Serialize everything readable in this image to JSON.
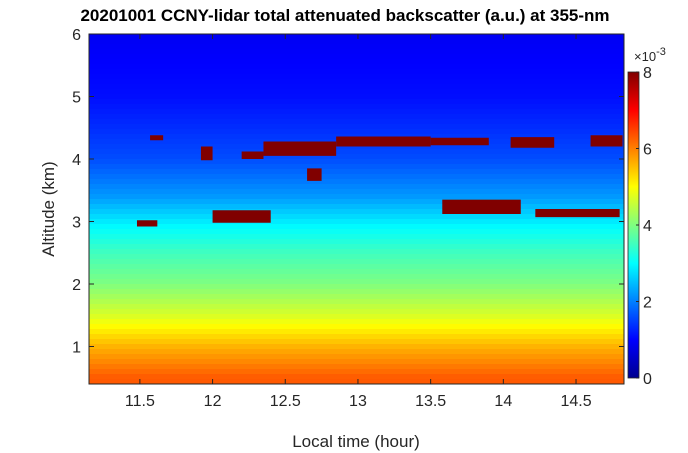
{
  "chart_data": {
    "type": "heatmap",
    "title": "20201001 CCNY-lidar total attenuated backscatter (a.u.) at 355-nm",
    "xlabel": "Local time (hour)",
    "ylabel": "Altitude (km)",
    "xlim": [
      11.15,
      14.83
    ],
    "ylim": [
      0.4,
      6.0
    ],
    "xticks": [
      11.5,
      12,
      12.5,
      13,
      13.5,
      14,
      14.5
    ],
    "xtick_labels": [
      "11.5",
      "12",
      "12.5",
      "13",
      "13.5",
      "14",
      "14.5"
    ],
    "yticks": [
      1,
      2,
      3,
      4,
      5,
      6
    ],
    "ytick_labels": [
      "1",
      "2",
      "3",
      "4",
      "5",
      "6"
    ],
    "colorbar": {
      "colormap": "jet",
      "range": [
        0,
        8
      ],
      "ticks": [
        0,
        2,
        4,
        6,
        8
      ],
      "tick_labels": [
        "0",
        "2",
        "4",
        "6",
        "8"
      ],
      "exponent_label": "×10",
      "exponent_power": "-3"
    },
    "background_profile": [
      {
        "altitude_km": 0.5,
        "value": 6.3
      },
      {
        "altitude_km": 1.0,
        "value": 5.6
      },
      {
        "altitude_km": 1.5,
        "value": 4.7
      },
      {
        "altitude_km": 2.0,
        "value": 4.0
      },
      {
        "altitude_km": 2.5,
        "value": 3.5
      },
      {
        "altitude_km": 2.9,
        "value": 3.0
      },
      {
        "altitude_km": 3.4,
        "value": 2.2
      },
      {
        "altitude_km": 4.0,
        "value": 1.6
      },
      {
        "altitude_km": 5.0,
        "value": 1.1
      },
      {
        "altitude_km": 6.0,
        "value": 0.9
      }
    ],
    "cloud_segments": [
      {
        "t_start": 11.48,
        "t_end": 11.62,
        "base_km": 2.92,
        "top_km": 3.02
      },
      {
        "t_start": 11.57,
        "t_end": 11.66,
        "base_km": 4.3,
        "top_km": 4.38
      },
      {
        "t_start": 11.92,
        "t_end": 12.0,
        "base_km": 3.98,
        "top_km": 4.2
      },
      {
        "t_start": 12.0,
        "t_end": 12.4,
        "base_km": 2.98,
        "top_km": 3.18
      },
      {
        "t_start": 12.2,
        "t_end": 12.35,
        "base_km": 4.0,
        "top_km": 4.12
      },
      {
        "t_start": 12.35,
        "t_end": 12.85,
        "base_km": 4.05,
        "top_km": 4.28
      },
      {
        "t_start": 12.85,
        "t_end": 13.5,
        "base_km": 4.2,
        "top_km": 4.36
      },
      {
        "t_start": 12.65,
        "t_end": 12.75,
        "base_km": 3.65,
        "top_km": 3.85
      },
      {
        "t_start": 13.5,
        "t_end": 13.9,
        "base_km": 4.22,
        "top_km": 4.34
      },
      {
        "t_start": 13.58,
        "t_end": 14.12,
        "base_km": 3.12,
        "top_km": 3.35
      },
      {
        "t_start": 14.05,
        "t_end": 14.35,
        "base_km": 4.18,
        "top_km": 4.35
      },
      {
        "t_start": 14.22,
        "t_end": 14.8,
        "base_km": 3.07,
        "top_km": 3.2
      },
      {
        "t_start": 14.6,
        "t_end": 14.82,
        "base_km": 4.2,
        "top_km": 4.38
      }
    ]
  }
}
